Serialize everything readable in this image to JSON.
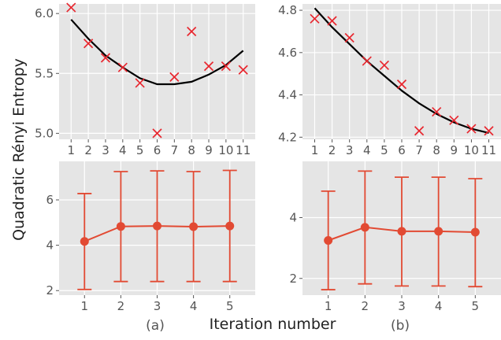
{
  "figure": {
    "ylabel": "Quadratic Rényi Entropy",
    "xlabel": "Iteration number",
    "panel_a_label": "(a)",
    "panel_b_label": "(b)"
  },
  "chart_data": [
    {
      "id": "top-left",
      "type": "scatter",
      "x": [
        1,
        2,
        3,
        4,
        5,
        6,
        7,
        8,
        9,
        10,
        11
      ],
      "points": [
        6.05,
        5.75,
        5.63,
        5.55,
        5.42,
        5.0,
        5.47,
        5.85,
        5.56,
        5.56,
        5.53
      ],
      "fit": [
        5.95,
        5.79,
        5.65,
        5.55,
        5.46,
        5.41,
        5.41,
        5.43,
        5.49,
        5.57,
        5.69
      ],
      "ylim": [
        4.95,
        6.08
      ],
      "xticks": [
        "1",
        "2",
        "3",
        "4",
        "5",
        "6",
        "7",
        "8",
        "9",
        "10",
        "11"
      ],
      "yticks": [
        5.0,
        5.5,
        6.0
      ],
      "ytick_labels": [
        "5.0",
        "5.5",
        "6.0"
      ],
      "grid": true,
      "marker_color": "#e8262e",
      "fit_color": "#000000"
    },
    {
      "id": "top-right",
      "type": "scatter",
      "x": [
        1,
        2,
        3,
        4,
        5,
        6,
        7,
        8,
        9,
        10,
        11
      ],
      "points": [
        4.76,
        4.75,
        4.67,
        4.56,
        4.54,
        4.45,
        4.23,
        4.32,
        4.28,
        4.24,
        4.23
      ],
      "fit": [
        4.81,
        4.72,
        4.64,
        4.56,
        4.49,
        4.42,
        4.36,
        4.31,
        4.27,
        4.24,
        4.22
      ],
      "ylim": [
        4.19,
        4.83
      ],
      "xticks": [
        "1",
        "2",
        "3",
        "4",
        "5",
        "6",
        "7",
        "8",
        "9",
        "10",
        "11"
      ],
      "yticks": [
        4.2,
        4.4,
        4.6,
        4.8
      ],
      "ytick_labels": [
        "4.2",
        "4.4",
        "4.6",
        "4.8"
      ],
      "grid": true,
      "marker_color": "#e8262e",
      "fit_color": "#000000"
    },
    {
      "id": "bottom-left",
      "type": "line",
      "x": [
        1,
        2,
        3,
        4,
        5
      ],
      "values": [
        4.17,
        4.83,
        4.85,
        4.82,
        4.85
      ],
      "err_low": [
        2.05,
        2.4,
        2.4,
        2.4,
        2.4
      ],
      "err_high": [
        6.28,
        7.25,
        7.28,
        7.25,
        7.3
      ],
      "ylim": [
        1.8,
        7.7
      ],
      "xticks": [
        "1",
        "2",
        "3",
        "4",
        "5"
      ],
      "yticks": [
        2,
        4,
        6
      ],
      "ytick_labels": [
        "2",
        "4",
        "6"
      ],
      "grid": true,
      "color": "#e24a33"
    },
    {
      "id": "bottom-right",
      "type": "line",
      "x": [
        1,
        2,
        3,
        4,
        5
      ],
      "values": [
        3.25,
        3.68,
        3.55,
        3.55,
        3.52
      ],
      "err_low": [
        1.63,
        1.82,
        1.75,
        1.75,
        1.73
      ],
      "err_high": [
        4.87,
        5.53,
        5.33,
        5.33,
        5.28
      ],
      "ylim": [
        1.45,
        5.85
      ],
      "xticks": [
        "1",
        "2",
        "3",
        "4",
        "5"
      ],
      "yticks": [
        2,
        4
      ],
      "ytick_labels": [
        "2",
        "4"
      ],
      "grid": true,
      "color": "#e24a33"
    }
  ]
}
